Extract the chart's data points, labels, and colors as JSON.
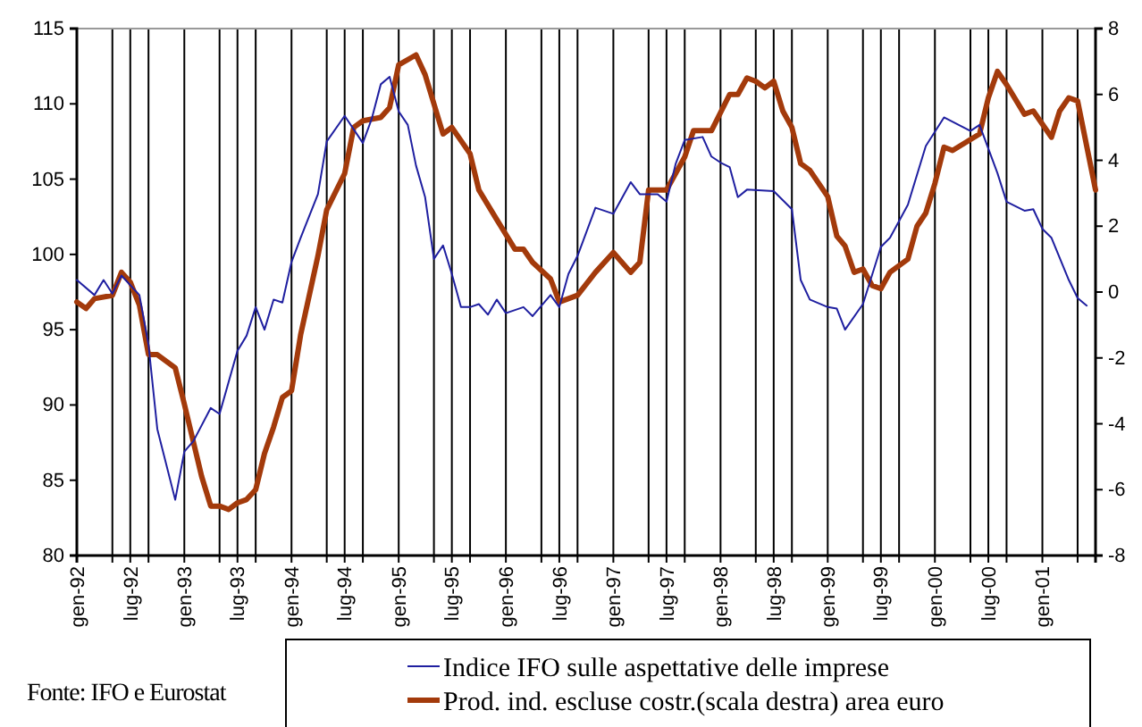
{
  "chart_data": {
    "type": "line",
    "annotations": [
      "Fonte: IFO e Eurostat"
    ],
    "xlim": [
      "1992-01",
      "2001-07"
    ],
    "xticks": [
      {
        "value": "1992-01",
        "label": "gen-92"
      },
      {
        "value": "1992-05",
        "label": null
      },
      {
        "value": "1992-07",
        "label": "lug-92"
      },
      {
        "value": "1992-09",
        "label": null
      },
      {
        "value": "1993-01",
        "label": "gen-93"
      },
      {
        "value": "1993-05",
        "label": null
      },
      {
        "value": "1993-07",
        "label": "lug-93"
      },
      {
        "value": "1993-09",
        "label": null
      },
      {
        "value": "1994-01",
        "label": "gen-94"
      },
      {
        "value": "1994-05",
        "label": null
      },
      {
        "value": "1994-07",
        "label": "lug-94"
      },
      {
        "value": "1994-09",
        "label": null
      },
      {
        "value": "1995-01",
        "label": "gen-95"
      },
      {
        "value": "1995-05",
        "label": null
      },
      {
        "value": "1995-07",
        "label": "lug-95"
      },
      {
        "value": "1995-09",
        "label": null
      },
      {
        "value": "1996-01",
        "label": "gen-96"
      },
      {
        "value": "1996-05",
        "label": null
      },
      {
        "value": "1996-07",
        "label": "lug-96"
      },
      {
        "value": "1996-09",
        "label": null
      },
      {
        "value": "1997-01",
        "label": "gen-97"
      },
      {
        "value": "1997-05",
        "label": null
      },
      {
        "value": "1997-07",
        "label": "lug-97"
      },
      {
        "value": "1997-09",
        "label": null
      },
      {
        "value": "1998-01",
        "label": "gen-98"
      },
      {
        "value": "1998-05",
        "label": null
      },
      {
        "value": "1998-07",
        "label": "lug-98"
      },
      {
        "value": "1998-09",
        "label": null
      },
      {
        "value": "1999-01",
        "label": "gen-99"
      },
      {
        "value": "1999-05",
        "label": null
      },
      {
        "value": "1999-07",
        "label": "lug-99"
      },
      {
        "value": "1999-09",
        "label": null
      },
      {
        "value": "2000-01",
        "label": "gen-00"
      },
      {
        "value": "2000-05",
        "label": null
      },
      {
        "value": "2000-07",
        "label": "lug-00"
      },
      {
        "value": "2000-09",
        "label": null
      },
      {
        "value": "2001-01",
        "label": "gen-01"
      },
      {
        "value": "2001-05",
        "label": null
      }
    ],
    "ylim": [
      80,
      115
    ],
    "yticks": [
      80,
      85,
      90,
      95,
      100,
      105,
      110,
      115
    ],
    "y2lim": [
      -8,
      8
    ],
    "y2ticks": [
      -8,
      -6,
      -4,
      -2,
      0,
      2,
      4,
      6,
      8
    ],
    "grid": "x",
    "legend": "bottom",
    "marker": "none",
    "line_style": "solid",
    "series": [
      {
        "name": "Indice IFO sulle aspettative delle imprese",
        "color": "#1f1fa0",
        "x": [
          "1992-01",
          "1992-03",
          "1992-04",
          "1992-05",
          "1992-06",
          "1992-08",
          "1992-09",
          "1992-10",
          "1992-12",
          "1993-01",
          "1993-02",
          "1993-04",
          "1993-05",
          "1993-07",
          "1993-08",
          "1993-09",
          "1993-10",
          "1993-11",
          "1993-12",
          "1994-01",
          "1994-02",
          "1994-04",
          "1994-05",
          "1994-07",
          "1994-09",
          "1994-10",
          "1994-11",
          "1994-12",
          "1995-01",
          "1995-02",
          "1995-03",
          "1995-04",
          "1995-05",
          "1995-06",
          "1995-07",
          "1995-08",
          "1995-09",
          "1995-10",
          "1995-11",
          "1995-12",
          "1996-01",
          "1996-03",
          "1996-04",
          "1996-06",
          "1996-07",
          "1996-08",
          "1996-09",
          "1996-11",
          "1997-01",
          "1997-03",
          "1997-04",
          "1997-06",
          "1997-07",
          "1997-08",
          "1997-09",
          "1997-11",
          "1997-12",
          "1998-01",
          "1998-02",
          "1998-03",
          "1998-04",
          "1998-07",
          "1998-09",
          "1998-10",
          "1998-11",
          "1999-01",
          "1999-02",
          "1999-03",
          "1999-05",
          "1999-07",
          "1999-08",
          "1999-10",
          "1999-12",
          "2000-02",
          "2000-05",
          "2000-06",
          "2000-08",
          "2000-09",
          "2000-11",
          "2000-12",
          "2001-01",
          "2001-02",
          "2001-04",
          "2001-05",
          "2001-06"
        ],
        "values": [
          98.3,
          97.3,
          98.3,
          97.4,
          98.6,
          97.3,
          94.0,
          88.4,
          83.7,
          86.9,
          87.6,
          89.8,
          89.4,
          93.6,
          94.6,
          96.5,
          95.0,
          97.0,
          96.8,
          99.5,
          101.1,
          104.0,
          107.5,
          109.2,
          107.4,
          109.0,
          111.3,
          111.8,
          109.5,
          108.6,
          105.9,
          103.8,
          99.7,
          100.6,
          98.7,
          96.5,
          96.5,
          96.7,
          96.0,
          97.0,
          96.1,
          96.5,
          95.9,
          97.3,
          96.5,
          98.7,
          99.9,
          103.1,
          102.7,
          104.8,
          104.0,
          104.0,
          103.5,
          106.0,
          107.6,
          107.8,
          106.5,
          106.1,
          105.8,
          103.8,
          104.3,
          104.2,
          103.0,
          98.3,
          97.0,
          96.5,
          96.4,
          95.0,
          96.7,
          100.5,
          101.1,
          103.3,
          107.2,
          109.1,
          108.2,
          108.6,
          105.4,
          103.5,
          102.9,
          103.0,
          101.7,
          101.1,
          98.3,
          97.1,
          96.6
        ]
      },
      {
        "name": "Prod. ind. escluse costr.(scala destra) area euro",
        "color": "#a33a0b",
        "axis": "y2",
        "x": [
          "1992-01",
          "1992-02",
          "1992-03",
          "1992-05",
          "1992-06",
          "1992-07",
          "1992-08",
          "1992-09",
          "1992-10",
          "1992-12",
          "1993-01",
          "1993-03",
          "1993-04",
          "1993-05",
          "1993-06",
          "1993-07",
          "1993-08",
          "1993-09",
          "1993-10",
          "1993-11",
          "1993-12",
          "1994-01",
          "1994-02",
          "1994-04",
          "1994-05",
          "1994-07",
          "1994-08",
          "1994-09",
          "1994-11",
          "1994-12",
          "1995-01",
          "1995-03",
          "1995-04",
          "1995-06",
          "1995-07",
          "1995-09",
          "1995-10",
          "1995-12",
          "1996-02",
          "1996-03",
          "1996-04",
          "1996-06",
          "1996-07",
          "1996-09",
          "1996-11",
          "1997-01",
          "1997-03",
          "1997-04",
          "1997-05",
          "1997-07",
          "1997-09",
          "1997-10",
          "1997-12",
          "1998-02",
          "1998-03",
          "1998-04",
          "1998-05",
          "1998-06",
          "1998-07",
          "1998-08",
          "1998-09",
          "1998-10",
          "1998-11",
          "1999-01",
          "1999-02",
          "1999-03",
          "1999-04",
          "1999-05",
          "1999-06",
          "1999-07",
          "1999-08",
          "1999-10",
          "1999-11",
          "1999-12",
          "2000-01",
          "2000-02",
          "2000-03",
          "2000-06",
          "2000-07",
          "2000-08",
          "2000-09",
          "2000-11",
          "2000-12",
          "2001-02",
          "2001-03",
          "2001-04",
          "2001-05",
          "2001-07"
        ],
        "values": [
          -0.3,
          -0.5,
          -0.2,
          -0.1,
          0.6,
          0.3,
          -0.4,
          -1.9,
          -1.9,
          -2.3,
          -3.4,
          -5.6,
          -6.5,
          -6.5,
          -6.6,
          -6.4,
          -6.3,
          -6.0,
          -4.9,
          -4.1,
          -3.2,
          -3.0,
          -1.3,
          1.1,
          2.5,
          3.6,
          5.0,
          5.2,
          5.3,
          5.6,
          6.9,
          7.2,
          6.6,
          4.8,
          5.0,
          4.2,
          3.1,
          2.2,
          1.3,
          1.3,
          0.9,
          0.4,
          -0.3,
          -0.1,
          0.6,
          1.2,
          0.6,
          0.9,
          3.1,
          3.1,
          4.1,
          4.9,
          4.9,
          6.0,
          6.0,
          6.5,
          6.4,
          6.2,
          6.4,
          5.5,
          5.0,
          3.9,
          3.7,
          2.9,
          1.7,
          1.4,
          0.6,
          0.7,
          0.2,
          0.1,
          0.6,
          1.0,
          2.0,
          2.4,
          3.3,
          4.4,
          4.3,
          4.8,
          5.9,
          6.7,
          6.3,
          5.4,
          5.5,
          4.7,
          5.5,
          5.9,
          5.8,
          3.1
        ]
      }
    ]
  }
}
